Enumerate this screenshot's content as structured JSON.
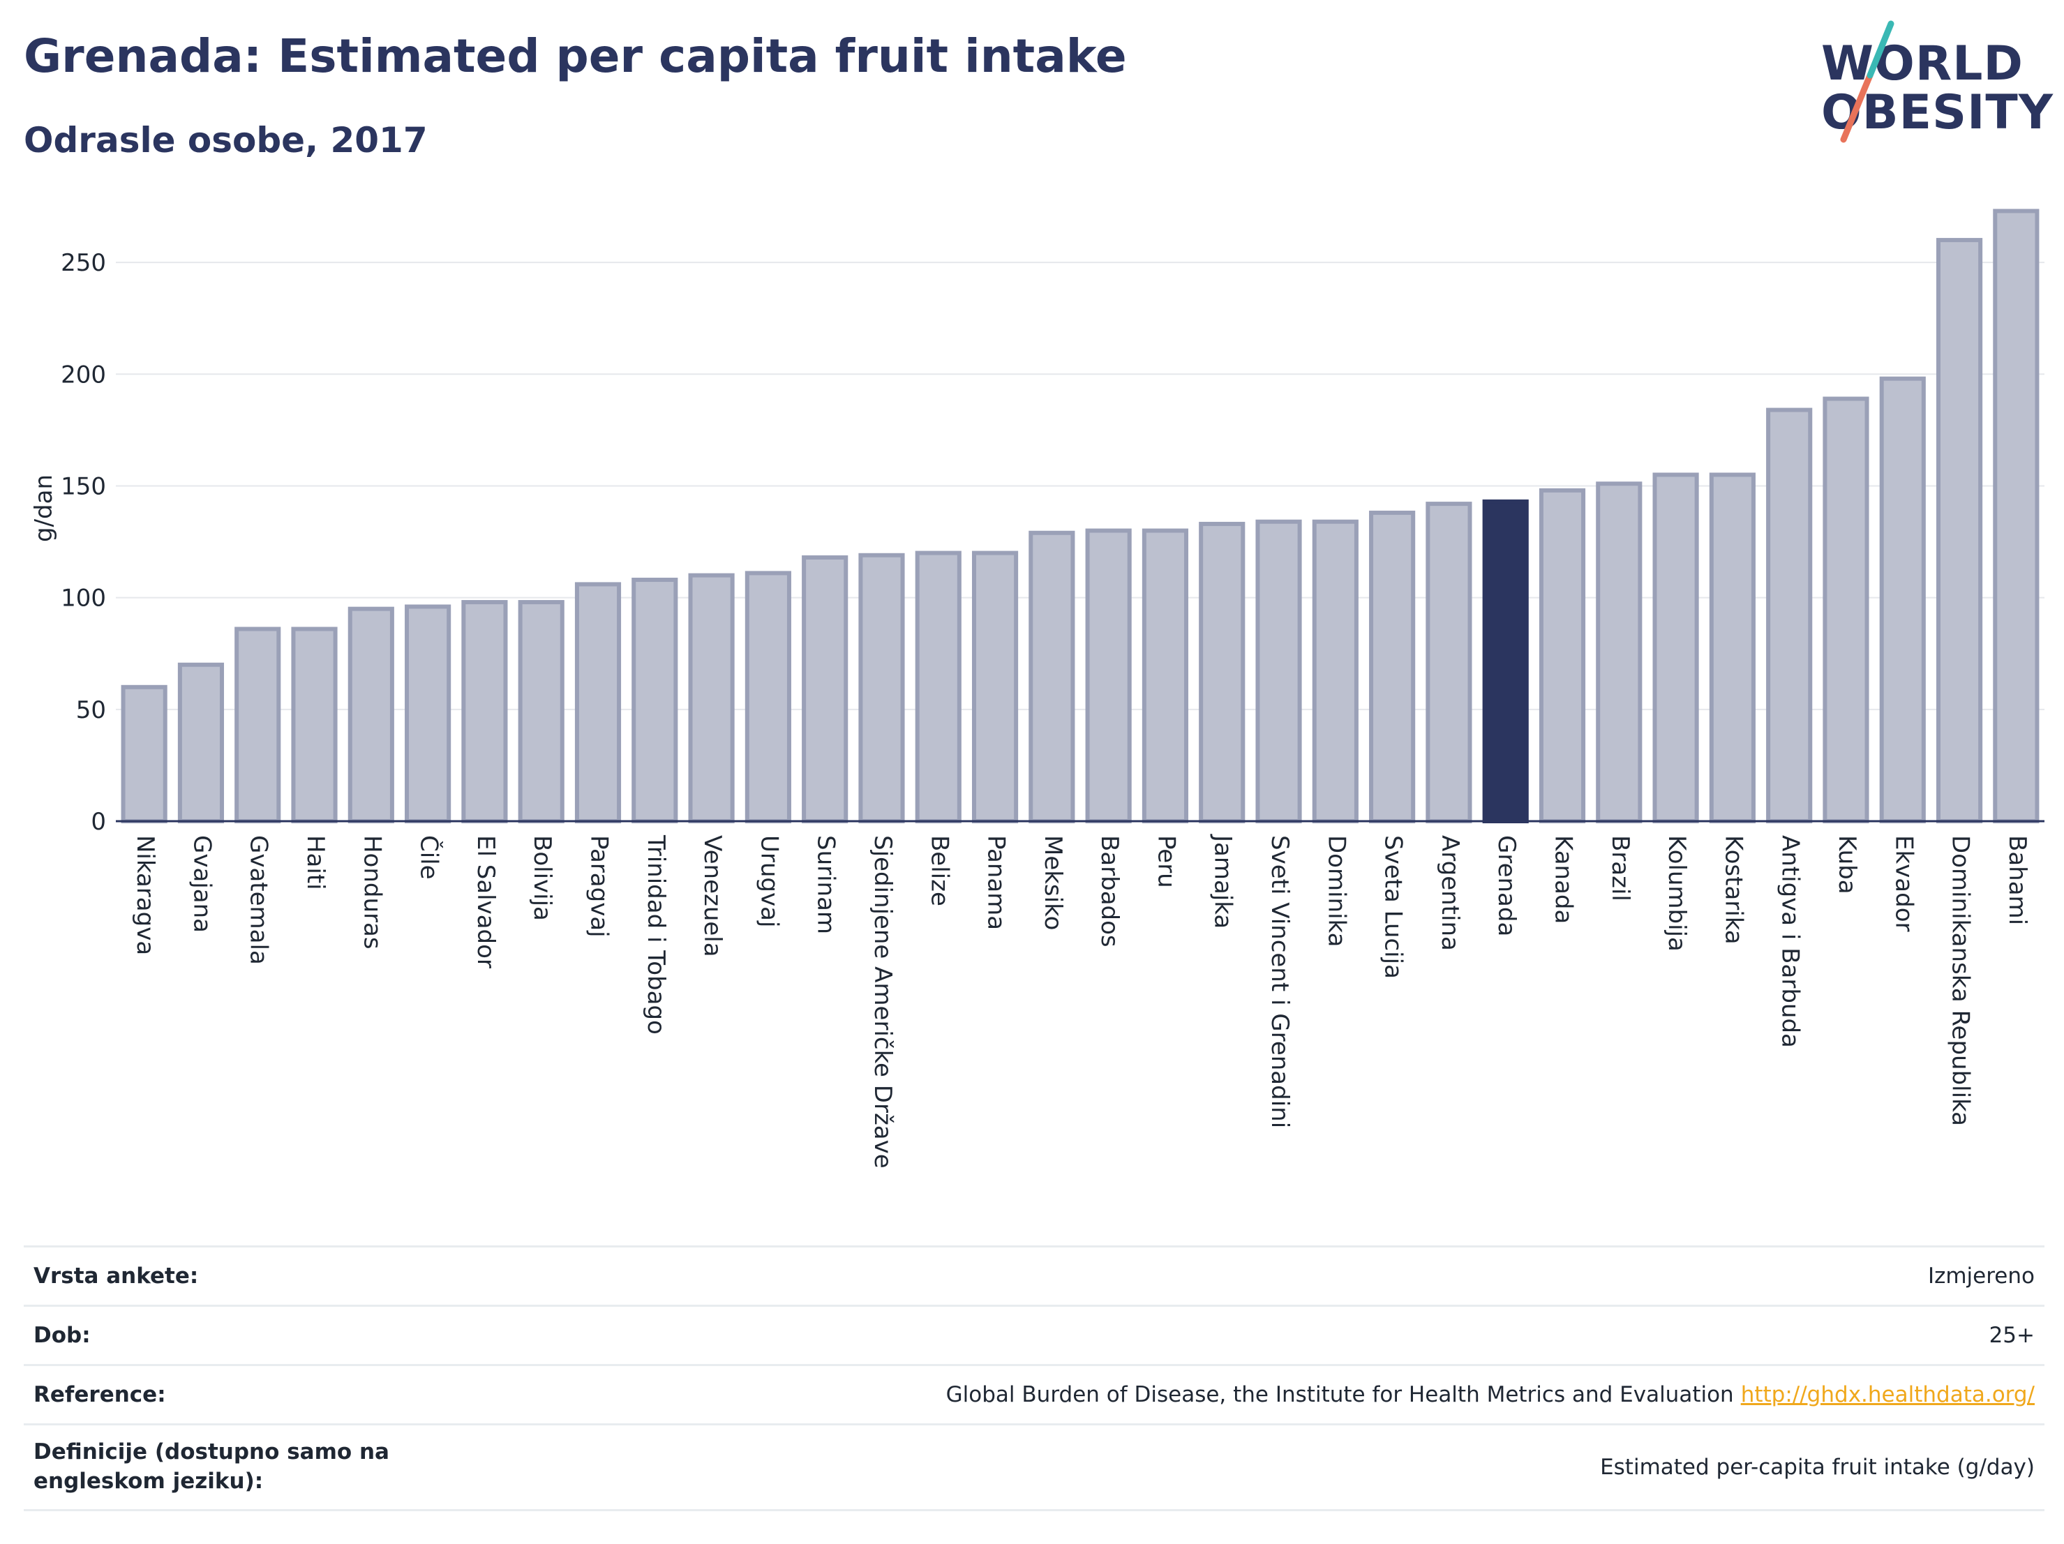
{
  "header": {
    "title": "Grenada: Estimated per capita fruit intake",
    "subtitle": "Odrasle osobe, 2017"
  },
  "logo": {
    "line1": "WORLD",
    "line2": "OBESITY",
    "colors": [
      "#2b355f",
      "#e8735a",
      "#3ab8b4"
    ]
  },
  "colors": {
    "bar": "#bcc0cf",
    "bar_border": "#9aa0b7",
    "highlight": "#2b355f",
    "grid": "#e6e8ec",
    "axis": "#2b355f"
  },
  "chart_data": {
    "type": "bar",
    "ylabel": "g/dan",
    "xlabel": "",
    "ylim": [
      0,
      280
    ],
    "yticks": [
      0,
      50,
      100,
      150,
      200,
      250
    ],
    "grid": true,
    "highlight": "Grenada",
    "categories": [
      "Nikaragva",
      "Gvajana",
      "Gvatemala",
      "Haiti",
      "Honduras",
      "Čile",
      "El Salvador",
      "Bolivija",
      "Paragvaj",
      "Trinidad i Tobago",
      "Venezuela",
      "Urugvaj",
      "Surinam",
      "Sjedinjene Američke Države",
      "Belize",
      "Panama",
      "Meksiko",
      "Barbados",
      "Peru",
      "Jamajka",
      "Sveti Vincent i Grenadini",
      "Dominika",
      "Sveta Lucija",
      "Argentina",
      "Grenada",
      "Kanada",
      "Brazil",
      "Kolumbija",
      "Kostarika",
      "Antigva i Barbuda",
      "Kuba",
      "Ekvador",
      "Dominikanska Republika",
      "Bahami"
    ],
    "values": [
      60,
      70,
      86,
      86,
      95,
      96,
      98,
      98,
      106,
      108,
      110,
      111,
      118,
      119,
      120,
      120,
      129,
      130,
      130,
      133,
      134,
      134,
      138,
      142,
      143,
      148,
      151,
      155,
      155,
      184,
      189,
      198,
      260,
      273
    ]
  },
  "info": {
    "survey_label": "Vrsta ankete:",
    "survey_value": "Izmjereno",
    "age_label": "Dob:",
    "age_value": "25+",
    "ref_label": "Reference:",
    "ref_value": "Global Burden of Disease, the Institute for Health Metrics and Evaluation",
    "ref_link": "http://ghdx.healthdata.org/",
    "def_label": "Definicije (dostupno samo na engleskom jeziku):",
    "def_value": "Estimated per-capita fruit intake (g/day)"
  }
}
